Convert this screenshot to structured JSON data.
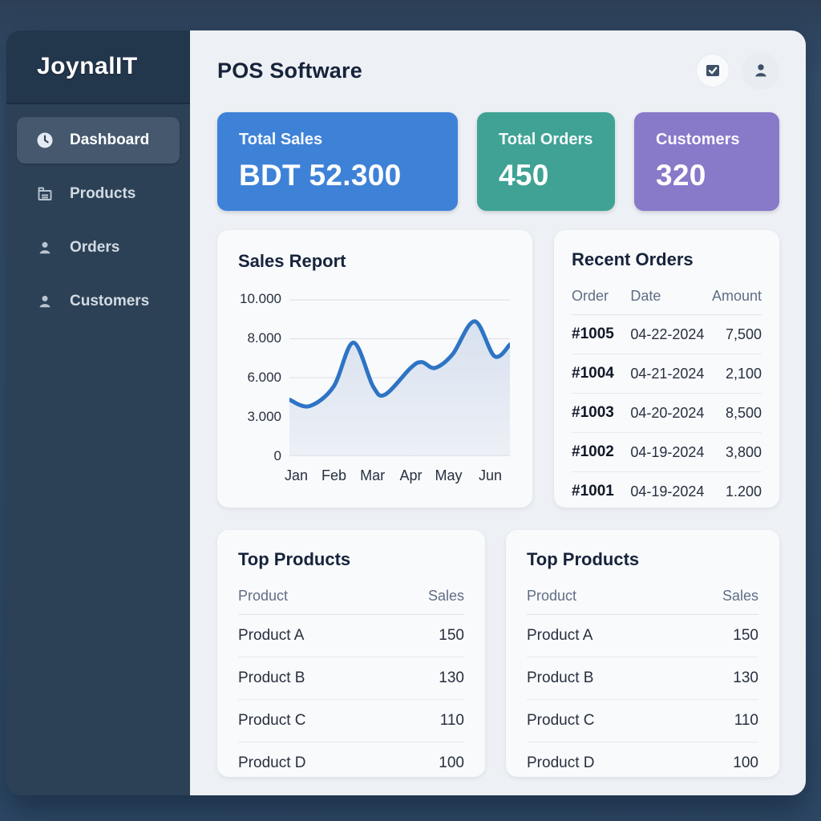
{
  "sidebar": {
    "logo": "JoynalIT",
    "items": [
      {
        "label": "Dashboard",
        "icon": "clock-icon",
        "active": true
      },
      {
        "label": "Products",
        "icon": "box-icon",
        "active": false
      },
      {
        "label": "Orders",
        "icon": "user-icon",
        "active": false
      },
      {
        "label": "Customers",
        "icon": "user-icon",
        "active": false
      }
    ]
  },
  "header": {
    "title": "POS Software",
    "actions": [
      {
        "name": "tasks-button",
        "icon": "checkbox-icon"
      },
      {
        "name": "profile-button",
        "icon": "person-icon"
      }
    ]
  },
  "stats": [
    {
      "label": "Total Sales",
      "value": "BDT 52.300",
      "color": "#3e82d8"
    },
    {
      "label": "Total Orders",
      "value": "450",
      "color": "#3fa295"
    },
    {
      "label": "Customers",
      "value": "320",
      "color": "#8979c9"
    }
  ],
  "chart_data": {
    "type": "area",
    "title": "Sales Report",
    "x_labels": [
      "Jan",
      "Feb",
      "Mar",
      "Apr",
      "May",
      "Jun"
    ],
    "y_tick_labels": [
      "10.000",
      "8.000",
      "6.000",
      "3.000",
      "0"
    ],
    "y_tick_values": [
      10000,
      8000,
      6000,
      3000,
      0
    ],
    "ylim": [
      0,
      10000
    ],
    "grid": true,
    "legend": false,
    "monthly_values": {
      "Jan": 4300,
      "Feb": 5300,
      "Mar": 5200,
      "Apr": 6600,
      "May": 7200,
      "Jun": 7500
    },
    "curve": [
      [
        0.0,
        4300
      ],
      [
        0.09,
        3800
      ],
      [
        0.2,
        5300
      ],
      [
        0.29,
        7800
      ],
      [
        0.38,
        5300
      ],
      [
        0.435,
        4700
      ],
      [
        0.55,
        6500
      ],
      [
        0.6,
        6800
      ],
      [
        0.66,
        6500
      ],
      [
        0.74,
        7200
      ],
      [
        0.84,
        8900
      ],
      [
        0.93,
        7100
      ],
      [
        1.0,
        7700
      ]
    ],
    "line_color": "#2e74c4",
    "fill_color_top": "#d5dfee",
    "fill_color_bottom": "#eaeef5"
  },
  "recent_orders": {
    "title": "Recent Orders",
    "columns": [
      "Order",
      "Date",
      "Amount"
    ],
    "rows": [
      {
        "order": "#1005",
        "date": "04-22-2024",
        "amount": "7,500"
      },
      {
        "order": "#1004",
        "date": "04-21-2024",
        "amount": "2,100"
      },
      {
        "order": "#1003",
        "date": "04-20-2024",
        "amount": "8,500"
      },
      {
        "order": "#1002",
        "date": "04-19-2024",
        "amount": "3,800"
      },
      {
        "order": "#1001",
        "date": "04-19-2024",
        "amount": "1.200"
      }
    ]
  },
  "top_products": {
    "title": "Top Products",
    "columns": [
      "Product",
      "Sales"
    ],
    "rows": [
      {
        "product": "Product A",
        "sales": "150"
      },
      {
        "product": "Product B",
        "sales": "130"
      },
      {
        "product": "Product C",
        "sales": "110"
      },
      {
        "product": "Product D",
        "sales": "100"
      }
    ]
  }
}
